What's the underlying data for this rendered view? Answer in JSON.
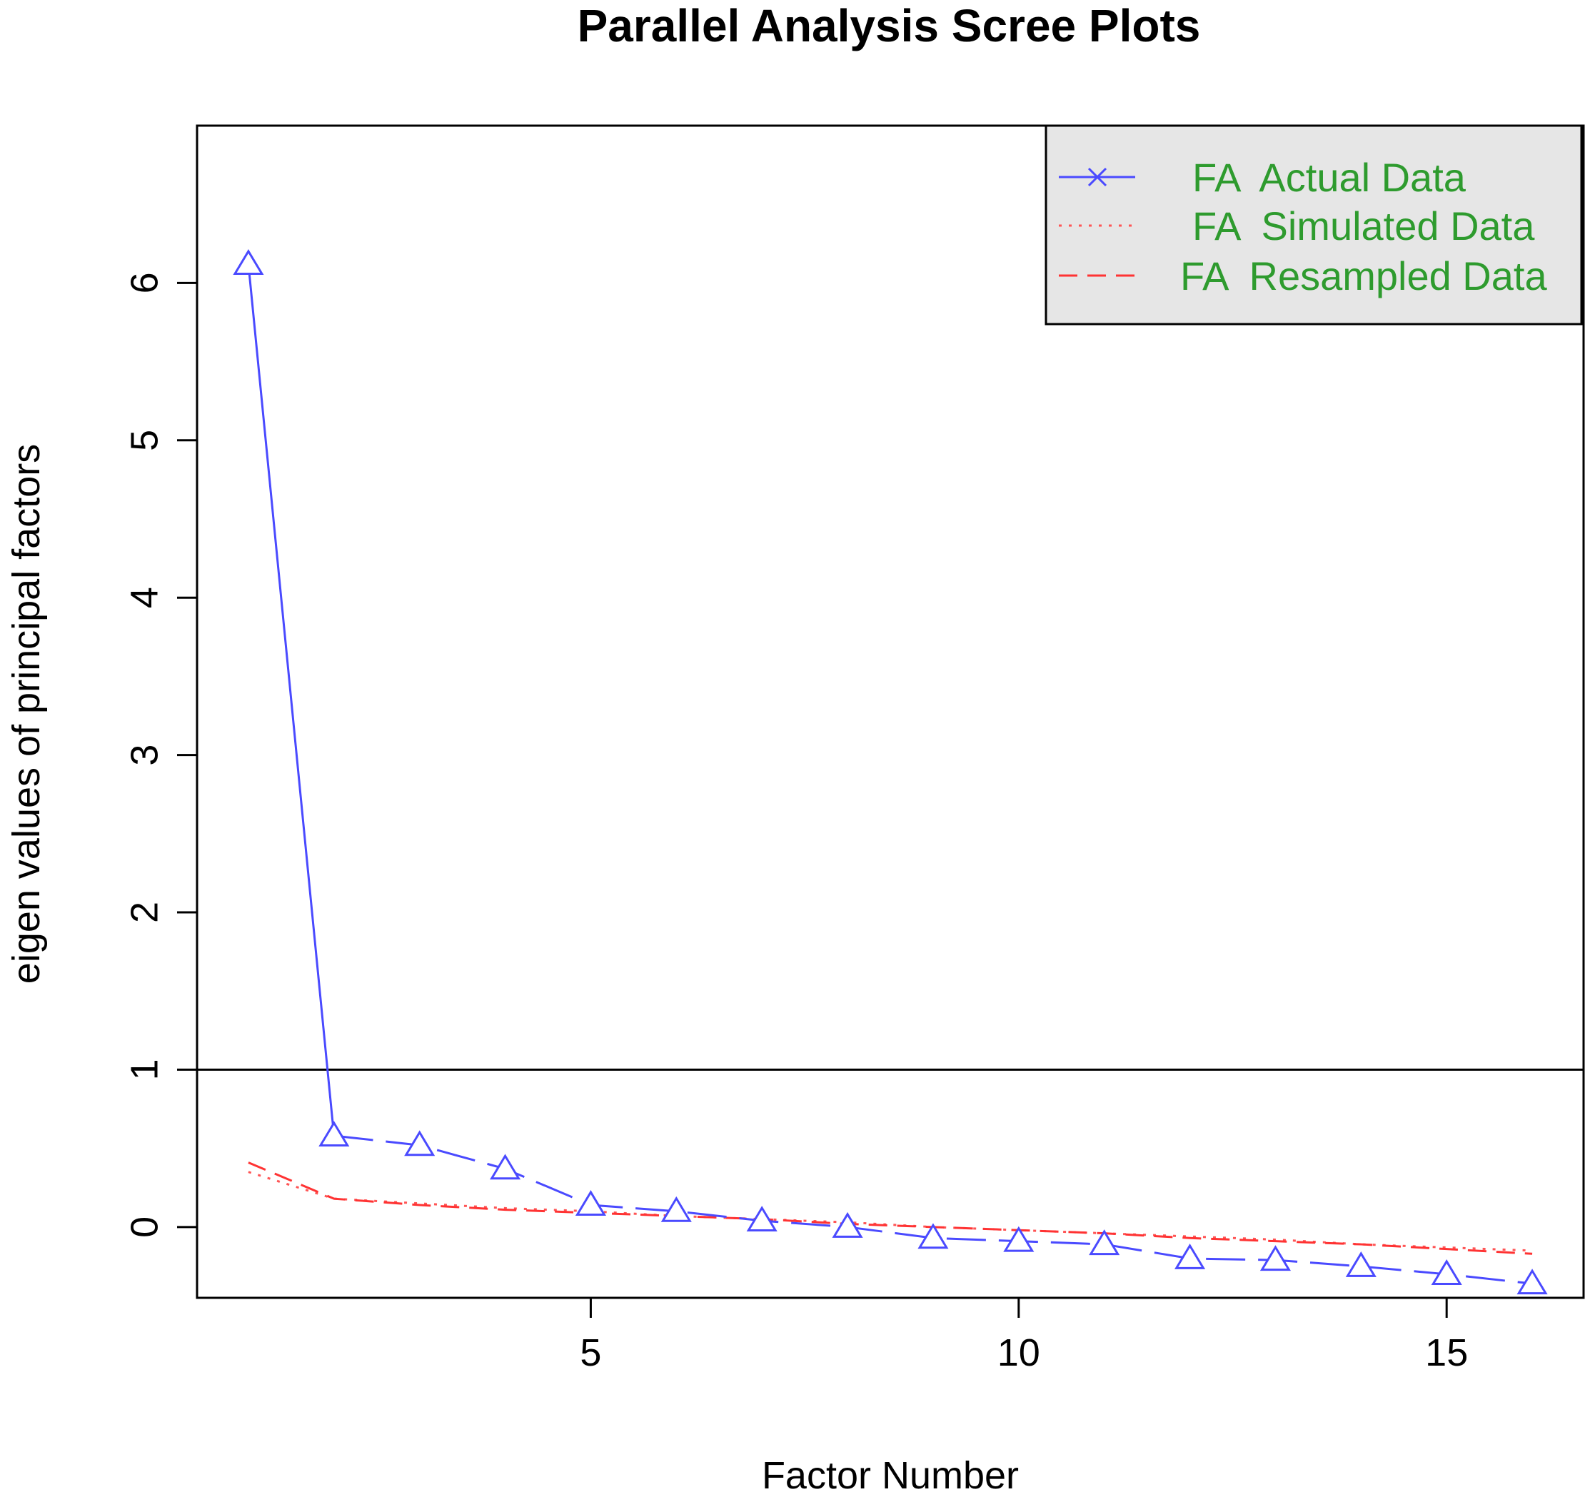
{
  "chart_data": {
    "type": "line",
    "title": "Parallel Analysis Scree Plots",
    "xlabel": "Factor Number",
    "ylabel": "eigen values of principal factors",
    "xlim": [
      0.4,
      16.6
    ],
    "ylim": [
      -0.45,
      7.0
    ],
    "x_ticks": [
      5,
      10,
      15
    ],
    "y_ticks": [
      0,
      1,
      2,
      3,
      4,
      5,
      6
    ],
    "reference_line": 1,
    "grid": false,
    "legend_position": "top-right",
    "x": [
      1,
      2,
      3,
      4,
      5,
      6,
      7,
      8,
      9,
      10,
      11,
      12,
      13,
      14,
      15,
      16
    ],
    "series": [
      {
        "name": "FA  Actual Data",
        "color": "#4a4aff",
        "marker": "triangle",
        "values": [
          6.12,
          0.58,
          0.52,
          0.37,
          0.14,
          0.1,
          0.04,
          0.0,
          -0.07,
          -0.09,
          -0.11,
          -0.2,
          -0.21,
          -0.25,
          -0.3,
          -0.36
        ]
      },
      {
        "name": "FA  Simulated Data",
        "color": "#ff5555",
        "style": "dotted",
        "values": [
          0.35,
          0.18,
          0.15,
          0.12,
          0.1,
          0.07,
          0.05,
          0.03,
          0.0,
          -0.02,
          -0.04,
          -0.06,
          -0.08,
          -0.11,
          -0.13,
          -0.15
        ]
      },
      {
        "name": "FA  Resampled Data",
        "color": "#ff3333",
        "style": "dashed",
        "values": [
          0.41,
          0.18,
          0.14,
          0.11,
          0.09,
          0.07,
          0.05,
          0.02,
          0.0,
          -0.02,
          -0.04,
          -0.07,
          -0.09,
          -0.11,
          -0.14,
          -0.17
        ]
      }
    ],
    "legend_text_color": "#2e9b2e"
  }
}
